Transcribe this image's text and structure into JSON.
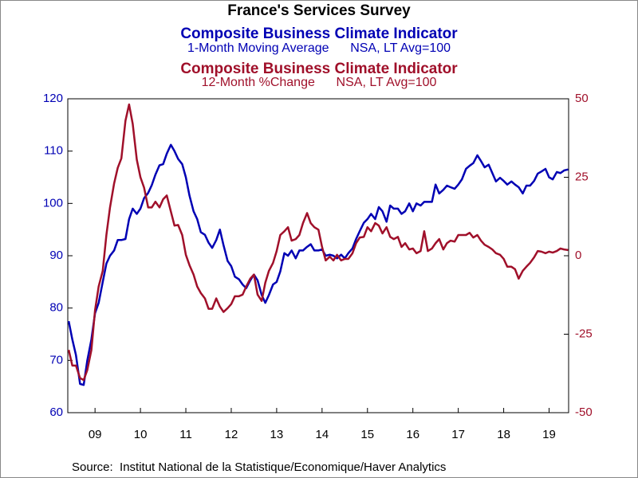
{
  "chart_data": {
    "type": "line",
    "title": "France's Services Survey",
    "source": "Source:  Institut National de la Statistique/Economique/Haver Analytics",
    "xlim": [
      2008.9,
      2019.93
    ],
    "xticks": [
      {
        "value": 2009.5,
        "label": "09"
      },
      {
        "value": 2010.5,
        "label": "10"
      },
      {
        "value": 2011.5,
        "label": "11"
      },
      {
        "value": 2012.5,
        "label": "12"
      },
      {
        "value": 2013.5,
        "label": "13"
      },
      {
        "value": 2014.5,
        "label": "14"
      },
      {
        "value": 2015.5,
        "label": "15"
      },
      {
        "value": 2016.5,
        "label": "16"
      },
      {
        "value": 2017.5,
        "label": "17"
      },
      {
        "value": 2018.5,
        "label": "18"
      },
      {
        "value": 2019.5,
        "label": "19"
      }
    ],
    "ylim": [
      60,
      120
    ],
    "yticks": [
      60,
      70,
      80,
      90,
      100,
      110,
      120
    ],
    "y2lim": [
      -50,
      50
    ],
    "y2ticks": [
      -50,
      -25,
      0,
      25,
      50
    ],
    "x": [
      2008.92,
      2009,
      2009.08,
      2009.17,
      2009.25,
      2009.33,
      2009.42,
      2009.5,
      2009.58,
      2009.67,
      2009.75,
      2009.83,
      2009.92,
      2010,
      2010.08,
      2010.17,
      2010.25,
      2010.33,
      2010.42,
      2010.5,
      2010.58,
      2010.67,
      2010.75,
      2010.83,
      2010.92,
      2011,
      2011.08,
      2011.17,
      2011.25,
      2011.33,
      2011.42,
      2011.5,
      2011.58,
      2011.67,
      2011.75,
      2011.83,
      2011.92,
      2012,
      2012.08,
      2012.17,
      2012.25,
      2012.33,
      2012.42,
      2012.5,
      2012.58,
      2012.67,
      2012.75,
      2012.83,
      2012.92,
      2013,
      2013.08,
      2013.17,
      2013.25,
      2013.33,
      2013.42,
      2013.5,
      2013.58,
      2013.67,
      2013.75,
      2013.83,
      2013.92,
      2014,
      2014.08,
      2014.17,
      2014.25,
      2014.33,
      2014.42,
      2014.5,
      2014.58,
      2014.67,
      2014.75,
      2014.83,
      2014.92,
      2015,
      2015.08,
      2015.17,
      2015.25,
      2015.33,
      2015.42,
      2015.5,
      2015.58,
      2015.67,
      2015.75,
      2015.83,
      2015.92,
      2016,
      2016.08,
      2016.17,
      2016.25,
      2016.33,
      2016.42,
      2016.5,
      2016.58,
      2016.67,
      2016.75,
      2016.83,
      2016.92,
      2017,
      2017.08,
      2017.17,
      2017.25,
      2017.33,
      2017.42,
      2017.5,
      2017.58,
      2017.67,
      2017.75,
      2017.83,
      2017.92,
      2018,
      2018.08,
      2018.17,
      2018.25,
      2018.33,
      2018.42,
      2018.5,
      2018.58,
      2018.67,
      2018.75,
      2018.83,
      2018.92,
      2019,
      2019.08,
      2019.17,
      2019.25,
      2019.33,
      2019.42,
      2019.5,
      2019.58,
      2019.67,
      2019.75,
      2019.83,
      2019.92
    ],
    "series": [
      {
        "name": "Composite Business Climate Indicator",
        "subtitle": "1-Month Moving Average      NSA, LT Avg=100",
        "color": "#0000b4",
        "axis": "y",
        "values": [
          77.5,
          74,
          71,
          65.5,
          65.3,
          70,
          74,
          79,
          81,
          85,
          88.5,
          90,
          91,
          93,
          93,
          93.2,
          97,
          99,
          98,
          99,
          101,
          102,
          103.5,
          105.5,
          107.3,
          107.5,
          109.5,
          111.2,
          110,
          108.5,
          107.5,
          105,
          101.5,
          98.5,
          97,
          94.5,
          94,
          92.5,
          91.5,
          93,
          95,
          92,
          89,
          88,
          86,
          85.5,
          84.5,
          83.8,
          85.3,
          86.4,
          85.3,
          82.5,
          81,
          82.5,
          84.5,
          85,
          87,
          90.5,
          90,
          91,
          89.5,
          91,
          91,
          91.7,
          92.2,
          91,
          91,
          91.2,
          90,
          90.2,
          90,
          89.5,
          90.2,
          89.5,
          90.5,
          91.4,
          93.2,
          94.7,
          96.3,
          97,
          98,
          97,
          99.3,
          98.5,
          96.5,
          99.6,
          99,
          99,
          98,
          98.5,
          100,
          98.5,
          100,
          99.6,
          100.3,
          100.3,
          100.3,
          103.6,
          101.9,
          102.6,
          103.4,
          103.1,
          102.8,
          103.6,
          104.6,
          106.6,
          107.2,
          107.7,
          109.2,
          108.1,
          106.9,
          107.4,
          105.8,
          104.2,
          104.9,
          104.3,
          103.6,
          104.2,
          103.6,
          103.1,
          101.9,
          103.4,
          103.4,
          104.3,
          105.7,
          106.1,
          106.6,
          105,
          104.6,
          106,
          105.8,
          106.3,
          106.5
        ]
      },
      {
        "name": "Composite Business Climate Indicator",
        "subtitle": "12-Month %Change      NSA, LT Avg=100",
        "color": "#a0102a",
        "axis": "y2",
        "values": [
          -30,
          -35,
          -35,
          -39,
          -39.6,
          -36.4,
          -30,
          -17.4,
          -9.8,
          -4.8,
          6.6,
          15.4,
          23,
          28,
          31,
          43,
          48.2,
          42,
          30.6,
          25,
          21.7,
          15.4,
          15.4,
          17.2,
          15.4,
          18,
          19.2,
          14.1,
          9.6,
          9.8,
          6.6,
          0.3,
          -3,
          -6,
          -9.8,
          -11.9,
          -13.6,
          -16.9,
          -16.9,
          -13.6,
          -16.2,
          -17.9,
          -16.7,
          -15.4,
          -12.9,
          -12.9,
          -12.4,
          -9.8,
          -7.3,
          -6,
          -12.4,
          -14.4,
          -8.6,
          -4.8,
          -2.3,
          1.5,
          6.6,
          7.8,
          9.1,
          4.8,
          5.3,
          6.6,
          10.4,
          13.6,
          10.4,
          9.1,
          8.3,
          2.8,
          -1.5,
          -0.3,
          -1.5,
          0.3,
          -1.5,
          -1,
          -1,
          0.8,
          4,
          5.8,
          6,
          9.1,
          7.8,
          10.4,
          9.6,
          7.1,
          9.1,
          6,
          5.3,
          6,
          2.8,
          4,
          2,
          2.3,
          0.8,
          1.5,
          7.8,
          1.5,
          2.3,
          4,
          5.3,
          2,
          4,
          4.8,
          4.5,
          6.6,
          6.6,
          6.6,
          7.3,
          5.8,
          6.6,
          4.8,
          3.5,
          2.8,
          2,
          0.8,
          0.3,
          -1,
          -3.5,
          -3.5,
          -4.3,
          -7.3,
          -4.8,
          -3.5,
          -2.3,
          -0.5,
          1.5,
          1.3,
          0.8,
          1.3,
          1,
          1.5,
          2.3,
          2,
          1.8
        ]
      }
    ]
  }
}
